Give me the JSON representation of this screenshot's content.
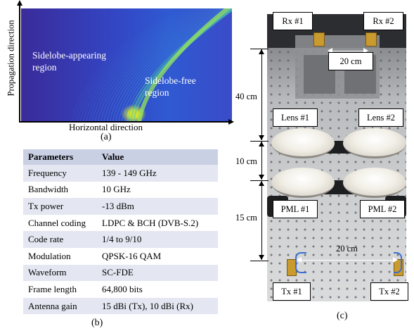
{
  "panel_a": {
    "ylabel": "Propagation direction",
    "xlabel": "Horizontal direction",
    "region_left": [
      "Sidelobe-appearing",
      "region"
    ],
    "region_right": [
      "Sidelobe-free",
      "region"
    ],
    "caption": "(a)"
  },
  "panel_b": {
    "headers": [
      "Parameters",
      "Value"
    ],
    "rows": [
      [
        "Frequency",
        "139 - 149 GHz"
      ],
      [
        "Bandwidth",
        "10 GHz"
      ],
      [
        "Tx power",
        "-13 dBm"
      ],
      [
        "Channel coding",
        "LDPC & BCH (DVB-S.2)"
      ],
      [
        "Code rate",
        "1/4 to 9/10"
      ],
      [
        "Modulation",
        "QPSK-16 QAM"
      ],
      [
        "Waveform",
        "SC-FDE"
      ],
      [
        "Frame length",
        "64,800 bits"
      ],
      [
        "Antenna gain",
        "15 dBi (Tx), 10 dBi (Rx)"
      ]
    ],
    "caption": "(b)",
    "colors": {
      "header": "#c9d0e4",
      "stripe": "#e4e7f1"
    }
  },
  "panel_c": {
    "rx1": "Rx #1",
    "rx2": "Rx #2",
    "lens1": "Lens #1",
    "lens2": "Lens #2",
    "pml1": "PML #1",
    "pml2": "PML #2",
    "tx1": "Tx #1",
    "tx2": "Tx #2",
    "spacing_top": "20 cm",
    "spacing_bottom": "20 cm",
    "dist_40": "40 cm",
    "dist_10": "10 cm",
    "dist_15": "15 cm",
    "caption": "(c)"
  }
}
